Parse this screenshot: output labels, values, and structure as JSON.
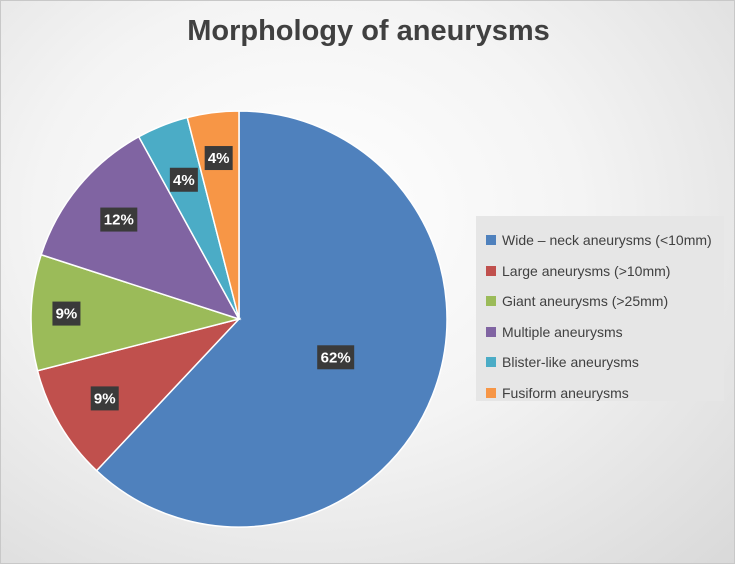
{
  "chart_data": {
    "type": "pie",
    "title": "Morphology of aneurysms",
    "categories": [
      "Wide – neck aneurysms (<10mm)",
      "Large aneurysms (>10mm)",
      "Giant aneurysms (>25mm)",
      "Multiple aneurysms",
      "Blister-like aneurysms",
      "Fusiform aneurysms"
    ],
    "values": [
      62,
      9,
      9,
      12,
      4,
      4
    ],
    "labels": [
      "62%",
      "9%",
      "9%",
      "12%",
      "4%",
      "4%"
    ],
    "unit": "%",
    "colors": [
      "#4f81bd",
      "#c0504d",
      "#9bbb59",
      "#8064a2",
      "#4bacc6",
      "#f79646"
    ],
    "start_angle": "12 o'clock",
    "direction": "clockwise",
    "legend_position": "right",
    "data_labels": true
  }
}
